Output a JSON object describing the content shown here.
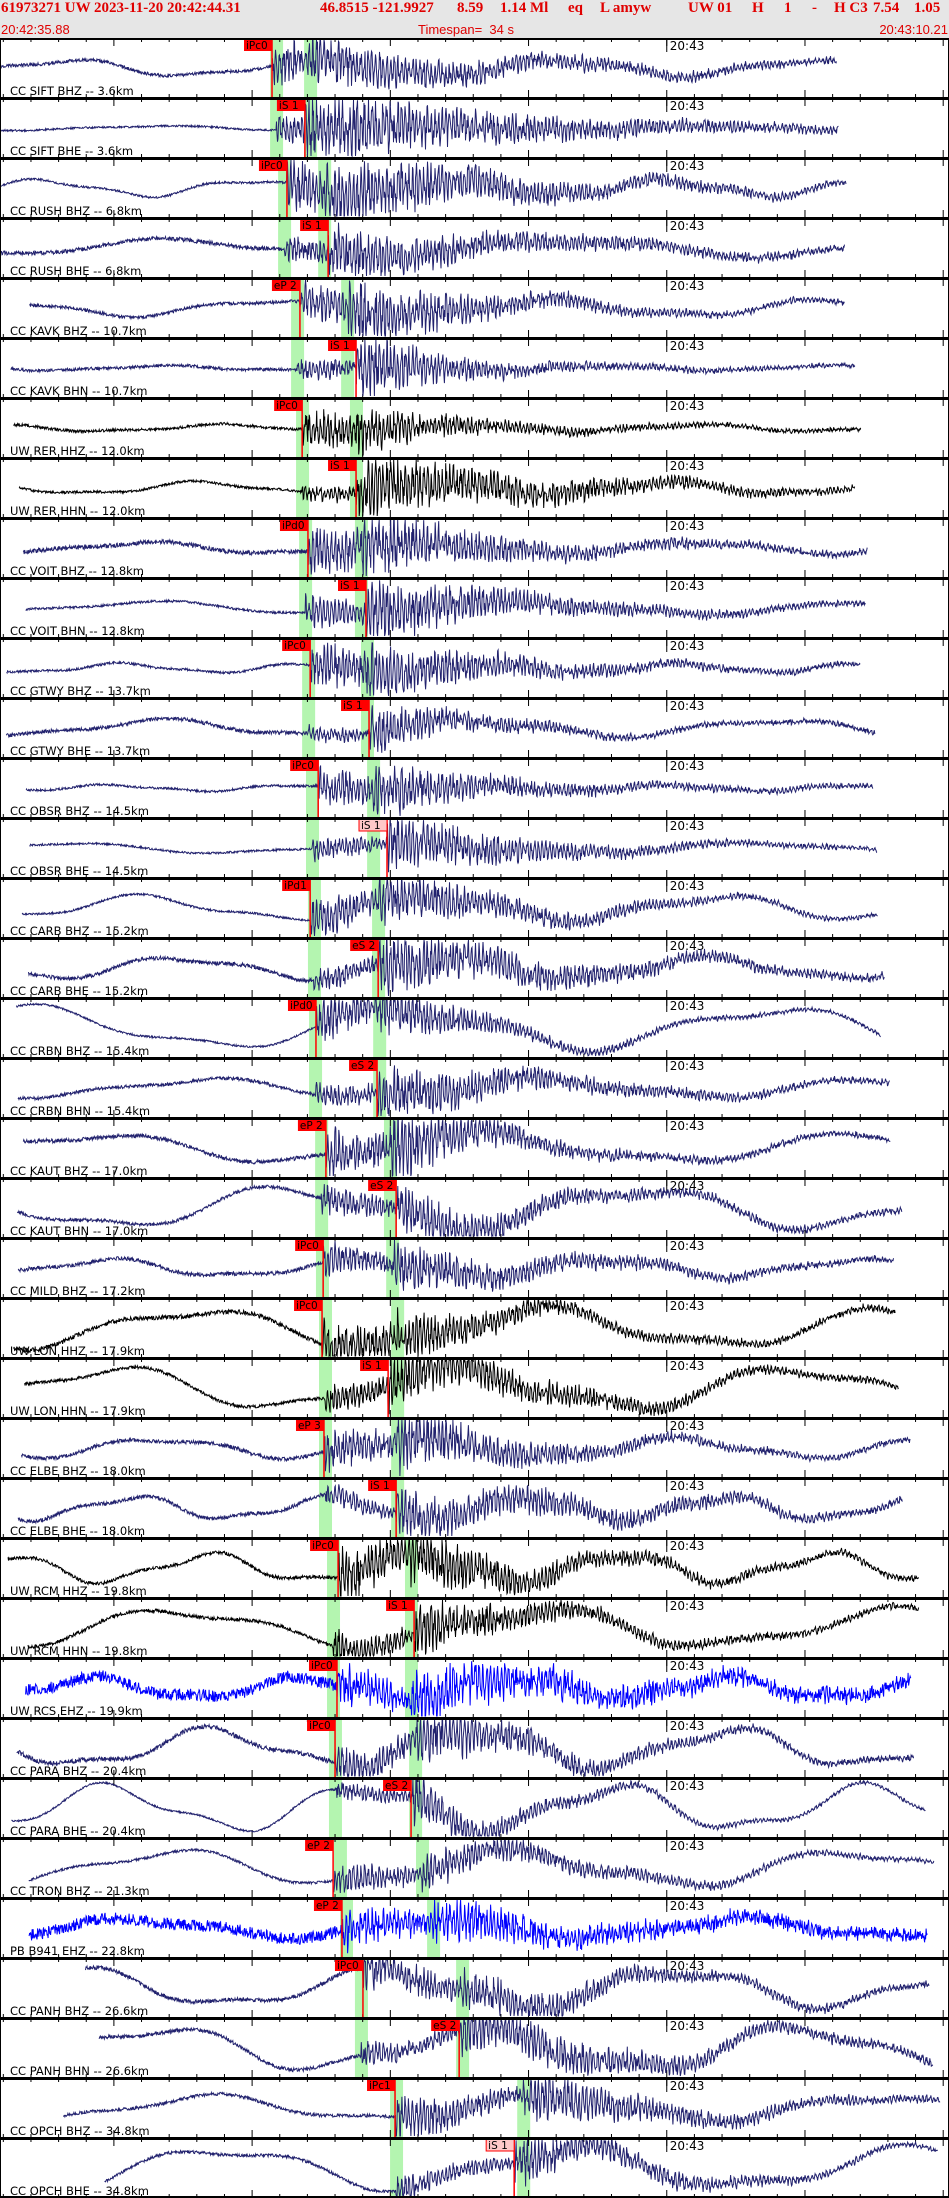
{
  "header": {
    "title_segments": [
      "61973271 UW 2023-11-20 20:42:44.31",
      "46.8515 -121.9927",
      "8.59",
      "1.14 Ml",
      "eq",
      "L amyw",
      "UW 01",
      "H",
      "1",
      "-",
      "H C3",
      "7.54",
      "1.05"
    ],
    "start_time": "20:42:35.88",
    "timespan": "Timespan=  34 s",
    "end_time": "20:43:10.21"
  },
  "minute_label": "20:43",
  "minute_time": "20:43:00.00",
  "colors": {
    "trace_default": "#22226e",
    "trace_black": "#000000",
    "trace_blue": "#0000ff",
    "pick": "#ff0000",
    "pick_light": "#ffc8c8",
    "window": "#b4f5b0"
  },
  "traces": [
    {
      "label": "CC SIFT BHZ -- 3.6km",
      "color": "#22226e",
      "p_window": "20:42:45.65",
      "s_window": "20:42:46.88",
      "pick_label": "iPc0",
      "pick_time": "20:42:45.72"
    },
    {
      "label": "CC SIFT BHE -- 3.6km",
      "color": "#22226e",
      "p_window": "20:42:45.65",
      "s_window": "20:42:46.88",
      "pick_label": "iS 1",
      "pick_time": "20:42:46.91"
    },
    {
      "label": "CC RUSH BHZ -- 6.8km",
      "color": "#22226e",
      "p_window": "20:42:45.94",
      "s_window": "20:42:47.39",
      "pick_label": "iPc0",
      "pick_time": "20:42:46.26"
    },
    {
      "label": "CC RUSH BHE -- 6.8km",
      "color": "#22226e",
      "p_window": "20:42:45.94",
      "s_window": "20:42:47.39",
      "pick_label": "iS 1",
      "pick_time": "20:42:47.75"
    },
    {
      "label": "CC KAVK BHZ -- 10.7km",
      "color": "#22226e",
      "p_window": "20:42:46.41",
      "s_window": "20:42:48.22",
      "pick_label": "eP 2",
      "pick_time": "20:42:46.73"
    },
    {
      "label": "CC KAVK BHN -- 10.7km",
      "color": "#22226e",
      "p_window": "20:42:46.41",
      "s_window": "20:42:48.22",
      "pick_label": "iS 1",
      "pick_time": "20:42:48.76"
    },
    {
      "label": "UW RER HHZ -- 12.0km",
      "color": "#000000",
      "p_window": "20:42:46.59",
      "s_window": "20:42:48.54",
      "pick_label": "iPc0",
      "pick_time": "20:42:46.81"
    },
    {
      "label": "UW RER HHN -- 12.0km",
      "color": "#000000",
      "p_window": "20:42:46.59",
      "s_window": "20:42:48.54",
      "pick_label": "iS 1",
      "pick_time": "20:42:48.76"
    },
    {
      "label": "CC VOIT BHZ -- 12.8km",
      "color": "#22226e",
      "p_window": "20:42:46.70",
      "s_window": "20:42:48.72",
      "pick_label": "iPd0",
      "pick_time": "20:42:47.02"
    },
    {
      "label": "CC VOIT BHN -- 12.8km",
      "color": "#22226e",
      "p_window": "20:42:46.70",
      "s_window": "20:42:48.72",
      "pick_label": "iS 1",
      "pick_time": "20:42:49.12"
    },
    {
      "label": "CC GTWY BHZ -- 13.7km",
      "color": "#22226e",
      "p_window": "20:42:46.81",
      "s_window": "20:42:48.94",
      "pick_label": "iPc0",
      "pick_time": "20:42:47.10"
    },
    {
      "label": "CC GTWY BHE -- 13.7km",
      "color": "#22226e",
      "p_window": "20:42:46.81",
      "s_window": "20:42:48.94",
      "pick_label": "iS 1",
      "pick_time": "20:42:49.23"
    },
    {
      "label": "CC OBSR BHZ -- 14.5km",
      "color": "#22226e",
      "p_window": "20:42:46.95",
      "s_window": "20:42:49.16",
      "pick_label": "iPc0",
      "pick_time": "20:42:47.39"
    },
    {
      "label": "CC OBSR BHE -- 14.5km",
      "color": "#22226e",
      "p_window": "20:42:46.95",
      "s_window": "20:42:49.16",
      "pick_label": "iS 1",
      "pick_time": "20:42:49.88",
      "pick_style": "light"
    },
    {
      "label": "CC CARB BHZ -- 15.2km",
      "color": "#22226e",
      "p_window": "20:42:47.02",
      "s_window": "20:42:49.34",
      "pick_label": "iPd1",
      "pick_time": "20:42:47.10"
    },
    {
      "label": "CC CARB BHE -- 15.2km",
      "color": "#22226e",
      "p_window": "20:42:47.02",
      "s_window": "20:42:49.34",
      "pick_label": "eS 2",
      "pick_time": "20:42:49.56"
    },
    {
      "label": "CC CRBN BHZ -- 15.4km",
      "color": "#22226e",
      "p_window": "20:42:47.06",
      "s_window": "20:42:49.38",
      "pick_label": "iPd0",
      "pick_time": "20:42:47.31"
    },
    {
      "label": "CC CRBN BHN -- 15.4km",
      "color": "#22226e",
      "p_window": "20:42:47.06",
      "s_window": "20:42:49.38",
      "pick_label": "eS 2",
      "pick_time": "20:42:49.52"
    },
    {
      "label": "CC KAUT BHZ -- 17.0km",
      "color": "#22226e",
      "p_window": "20:42:47.28",
      "s_window": "20:42:49.77",
      "pick_label": "eP 2",
      "pick_time": "20:42:47.67"
    },
    {
      "label": "CC KAUT BHN -- 17.0km",
      "color": "#22226e",
      "p_window": "20:42:47.28",
      "s_window": "20:42:49.77",
      "pick_label": "eS 2",
      "pick_time": "20:42:50.21"
    },
    {
      "label": "CC MILD BHZ -- 17.2km",
      "color": "#22226e",
      "p_window": "20:42:47.31",
      "s_window": "20:42:49.85",
      "pick_label": "iPc0",
      "pick_time": "20:42:47.57"
    },
    {
      "label": "UW LON HHZ -- 17.9km",
      "color": "#000000",
      "p_window": "20:42:47.42",
      "s_window": "20:42:50.03",
      "pick_label": "iPc0",
      "pick_time": "20:42:47.53"
    },
    {
      "label": "UW LON HHN -- 17.9km",
      "color": "#000000",
      "p_window": "20:42:47.42",
      "s_window": "20:42:50.03",
      "pick_label": "iS 1",
      "pick_time": "20:42:49.92"
    },
    {
      "label": "CC ELBE BHZ -- 18.0km",
      "color": "#22226e",
      "p_window": "20:42:47.42",
      "s_window": "20:42:50.03",
      "pick_label": "eP 3",
      "pick_time": "20:42:47.60"
    },
    {
      "label": "CC ELBE BHE -- 18.0km",
      "color": "#22226e",
      "p_window": "20:42:47.42",
      "s_window": "20:42:50.03",
      "pick_label": "iS 1",
      "pick_time": "20:42:50.21"
    },
    {
      "label": "UW RCM HHZ -- 19.8km",
      "color": "#000000",
      "p_window": "20:42:47.71",
      "s_window": "20:42:50.53",
      "pick_label": "iPc0",
      "pick_time": "20:42:48.11"
    },
    {
      "label": "UW RCM HHN -- 19.8km",
      "color": "#000000",
      "p_window": "20:42:47.71",
      "s_window": "20:42:50.53",
      "pick_label": "iS 1",
      "pick_time": "20:42:50.86"
    },
    {
      "label": "UW RCS EHZ -- 19.9km",
      "color": "#0000ff",
      "p_window": "20:42:47.71",
      "s_window": "20:42:50.53",
      "pick_label": "iPc0",
      "pick_time": "20:42:48.07"
    },
    {
      "label": "CC PARA BHZ -- 20.4km",
      "color": "#22226e",
      "p_window": "20:42:47.78",
      "s_window": "20:42:50.68",
      "pick_label": "iPc0",
      "pick_time": "20:42:48.00"
    },
    {
      "label": "CC PARA BHE -- 20.4km",
      "color": "#22226e",
      "p_window": "20:42:47.78",
      "s_window": "20:42:50.68",
      "pick_label": "eS 2",
      "pick_time": "20:42:50.75"
    },
    {
      "label": "CC TRON BHZ -- 21.3km",
      "color": "#22226e",
      "p_window": "20:42:47.96",
      "s_window": "20:42:50.93",
      "pick_label": "eP 2",
      "pick_time": "20:42:47.93"
    },
    {
      "label": "PB B941 EHZ -- 22.8km",
      "color": "#0000ff",
      "p_window": "20:42:48.18",
      "s_window": "20:42:51.33",
      "pick_label": "eP 2",
      "pick_time": "20:42:48.25"
    },
    {
      "label": "CC PANH BHZ -- 26.6km",
      "color": "#22226e",
      "p_window": "20:42:48.72",
      "s_window": "20:42:52.38",
      "pick_label": "iPc0",
      "pick_time": "20:42:49.01"
    },
    {
      "label": "CC PANH BHN -- 26.6km",
      "color": "#22226e",
      "p_window": "20:42:48.72",
      "s_window": "20:42:52.38",
      "pick_label": "eS 2",
      "pick_time": "20:42:52.49"
    },
    {
      "label": "CC OPCH BHZ -- 34.8km",
      "color": "#22226e",
      "p_window": "20:42:49.99",
      "s_window": "20:42:54.59",
      "pick_label": "iPc1",
      "pick_time": "20:42:50.17"
    },
    {
      "label": "CC OPCH BHE -- 34.8km",
      "color": "#22226e",
      "p_window": "20:42:49.99",
      "s_window": "20:42:54.59",
      "pick_label": "iS 1",
      "pick_time": "20:42:54.48",
      "pick_style": "light"
    }
  ]
}
